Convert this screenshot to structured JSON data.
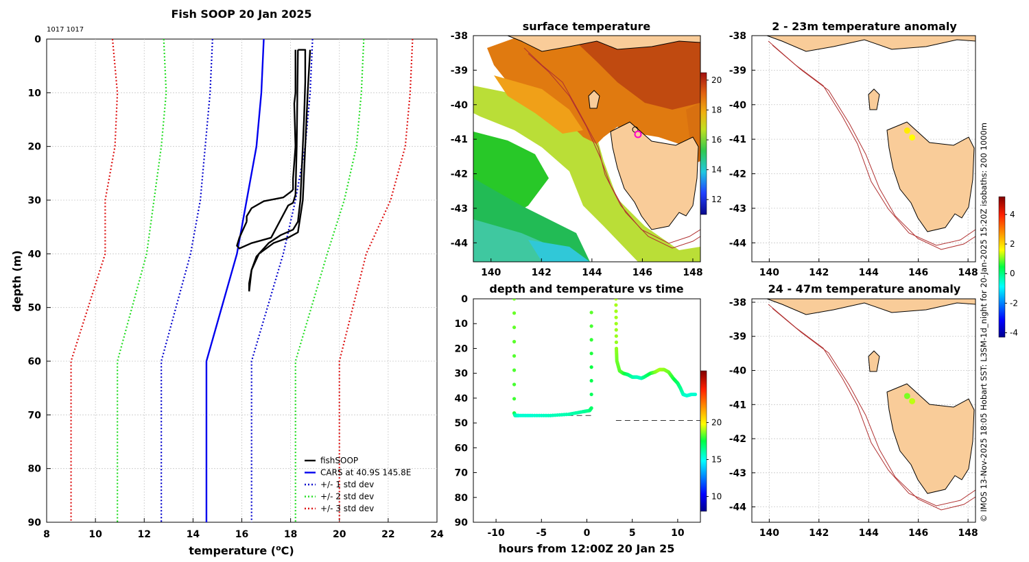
{
  "main_title": "Fish SOOP 20 Jan 2025",
  "id_label": "1017 1017",
  "side_note": "© IMOS 13-Nov-2025 18:05 Hobart SST: L3SM-1d_night for 20-Jan-2025 15:20Z isobaths: 200  1000m",
  "colors": {
    "fishsoop": "#000000",
    "cars": "#0000ee",
    "sd1": "#0000cc",
    "sd2": "#22dd22",
    "sd3": "#dd1111",
    "land": "#f9cc99",
    "isobath": "#b03030"
  },
  "chart_data": [
    {
      "type": "line",
      "panel": "profile",
      "title": "Fish SOOP 20 Jan 2025",
      "xlabel": "temperature (°C)",
      "ylabel": "depth (m)",
      "xlim": [
        8,
        24
      ],
      "ylim": [
        90,
        0
      ],
      "xticks": [
        "8",
        "10",
        "12",
        "14",
        "16",
        "18",
        "20",
        "22",
        "24"
      ],
      "yticks": [
        "0",
        "10",
        "20",
        "30",
        "40",
        "50",
        "60",
        "70",
        "80",
        "90"
      ],
      "legend": [
        "fishSOOP",
        "CARS at 40.9S 145.8E",
        "+/- 1 std dev",
        "+/- 2 std dev",
        "+/- 3 std dev"
      ],
      "legend_position": "bottom-right",
      "cars_depth": [
        0,
        10,
        20,
        30,
        40,
        60,
        90
      ],
      "series": [
        {
          "name": "CARS mean",
          "values": [
            16.9,
            16.8,
            16.6,
            16.2,
            15.8,
            14.55,
            14.55
          ]
        },
        {
          "name": "-1 std",
          "values": [
            14.8,
            14.7,
            14.5,
            14.3,
            13.9,
            12.7,
            12.7
          ]
        },
        {
          "name": "+1 std",
          "values": [
            18.9,
            18.8,
            18.6,
            18.2,
            17.7,
            16.4,
            16.4
          ]
        },
        {
          "name": "-2 std",
          "values": [
            12.8,
            12.9,
            12.7,
            12.4,
            12.1,
            10.9,
            10.9
          ]
        },
        {
          "name": "+2 std",
          "values": [
            21.0,
            20.9,
            20.7,
            20.2,
            19.5,
            18.2,
            18.2
          ]
        },
        {
          "name": "-3 std",
          "values": [
            10.7,
            10.9,
            10.8,
            10.4,
            10.4,
            9.0,
            9.0
          ]
        },
        {
          "name": "+3 std",
          "values": [
            23.0,
            22.9,
            22.7,
            22.1,
            21.1,
            20.0,
            20.0
          ]
        }
      ],
      "fishsoop_casts": [
        {
          "name": "cast 1 down",
          "temp": [
            18.2,
            18.2,
            18.15,
            18.2,
            18.1,
            18.1,
            18.05,
            17.7,
            16.9,
            16.4,
            16.2,
            16.2
          ],
          "depth": [
            2,
            10,
            12,
            20,
            26,
            28,
            28.3,
            29.5,
            30.2,
            31.5,
            33,
            34
          ]
        },
        {
          "name": "cast 1 up",
          "temp": [
            16.2,
            16.0,
            15.9,
            15.8,
            15.9,
            16.4,
            17.2,
            17.9,
            18.1,
            18.2,
            18.25,
            18.3
          ],
          "depth": [
            34,
            36,
            37,
            38.5,
            39,
            38,
            37,
            31,
            30.5,
            29,
            20,
            2
          ]
        },
        {
          "name": "cast 2 down",
          "temp": [
            18.3,
            18.6,
            18.6,
            18.55,
            18.45,
            18.4,
            18.3,
            18.1,
            17.6,
            17.1,
            16.6,
            16.4,
            16.3,
            16.3
          ],
          "depth": [
            2,
            2,
            8,
            15,
            25,
            30,
            34,
            35.5,
            36.5,
            38,
            40.5,
            43,
            45.5,
            47
          ]
        },
        {
          "name": "cast 2 up",
          "temp": [
            16.3,
            16.4,
            16.7,
            17.3,
            17.9,
            18.3,
            18.5,
            18.6,
            18.7,
            18.8
          ],
          "depth": [
            47,
            43,
            40,
            38,
            37,
            36,
            30,
            20,
            10,
            2
          ]
        }
      ]
    },
    {
      "type": "heatmap",
      "panel": "map_sst",
      "title": "surface temperature",
      "xticks": [
        "140",
        "142",
        "144",
        "146",
        "148"
      ],
      "yticks": [
        "-38",
        "-39",
        "-40",
        "-41",
        "-42",
        "-43",
        "-44"
      ],
      "colorbar": {
        "range": [
          11,
          20.5
        ],
        "ticks": [
          "12",
          "14",
          "16",
          "18",
          "20"
        ]
      },
      "station": {
        "lon": 145.8,
        "lat": -40.9
      }
    },
    {
      "type": "scatter",
      "panel": "depth_time",
      "title": "depth and temperature vs time",
      "xlabel": "hours from 12:00Z 20 Jan 25",
      "xlim": [
        -12.5,
        12.5
      ],
      "ylim": [
        90,
        0
      ],
      "xticks": [
        "-10",
        "-5",
        "0",
        "5",
        "10"
      ],
      "yticks": [
        "0",
        "10",
        "20",
        "30",
        "40",
        "50",
        "60",
        "70",
        "80",
        "90"
      ],
      "colorbar": {
        "range": [
          8,
          27
        ],
        "ticks": [
          "10",
          "15",
          "20"
        ]
      },
      "track_segments": [
        {
          "hours": [
            -8.0,
            -8.0,
            -7.9,
            -7.5,
            -6,
            -4,
            -2,
            -0.5,
            0.3,
            0.5,
            0.5
          ],
          "depth": [
            0,
            46,
            47,
            47,
            47,
            47,
            46.5,
            45.5,
            45,
            44,
            0
          ],
          "temp": [
            18.5,
            18,
            16,
            15.5,
            15.5,
            15.8,
            16,
            16.2,
            16.5,
            17,
            18.5
          ]
        },
        {
          "hours": [
            3.2,
            3.25,
            3.3,
            3.6,
            4,
            4.5,
            5,
            5.5,
            6,
            6.3,
            7,
            7.5,
            8,
            8.5,
            9,
            9.5,
            10,
            10.3,
            10.6,
            11,
            11.5,
            12
          ],
          "depth": [
            0,
            20,
            25,
            29,
            30,
            30.5,
            31.5,
            31.5,
            32,
            31.5,
            30,
            29.5,
            28.5,
            28.5,
            29.5,
            32,
            34,
            36,
            38.5,
            39,
            38.5,
            38.5
          ],
          "temp": [
            19,
            18.8,
            18.5,
            18.3,
            18,
            17,
            16.2,
            15.8,
            15.8,
            16.5,
            17.5,
            18.5,
            19,
            18.8,
            18.5,
            17.8,
            17,
            16.5,
            15.8,
            15.5,
            15.5,
            15.5
          ]
        }
      ],
      "bottom_depth_lines": [
        {
          "hours": [
            -8.0,
            0.6
          ],
          "depth": 47
        },
        {
          "hours": [
            3.2,
            12.5
          ],
          "depth": 49
        }
      ]
    },
    {
      "type": "scatter",
      "panel": "map_anom_upper",
      "title": "2 - 23m temperature anomaly",
      "xticks": [
        "140",
        "142",
        "144",
        "146",
        "148"
      ],
      "yticks": [
        "-38",
        "-39",
        "-40",
        "-41",
        "-42",
        "-43",
        "-44"
      ],
      "points": [
        {
          "lon": 145.55,
          "lat": -40.75,
          "anomaly": 1.8
        },
        {
          "lon": 145.75,
          "lat": -40.95,
          "anomaly": 1.6
        }
      ]
    },
    {
      "type": "scatter",
      "panel": "map_anom_lower",
      "title": "24 - 47m temperature anomaly",
      "xticks": [
        "140",
        "142",
        "144",
        "146",
        "148"
      ],
      "yticks": [
        "-38",
        "-39",
        "-40",
        "-41",
        "-42",
        "-43",
        "-44"
      ],
      "points": [
        {
          "lon": 145.55,
          "lat": -40.75,
          "anomaly": 1.0
        },
        {
          "lon": 145.75,
          "lat": -40.9,
          "anomaly": 1.3
        }
      ],
      "colorbar": {
        "range": [
          -4.3,
          5.2
        ],
        "ticks": [
          "-4",
          "-2",
          "0",
          "2",
          "4"
        ]
      }
    }
  ]
}
